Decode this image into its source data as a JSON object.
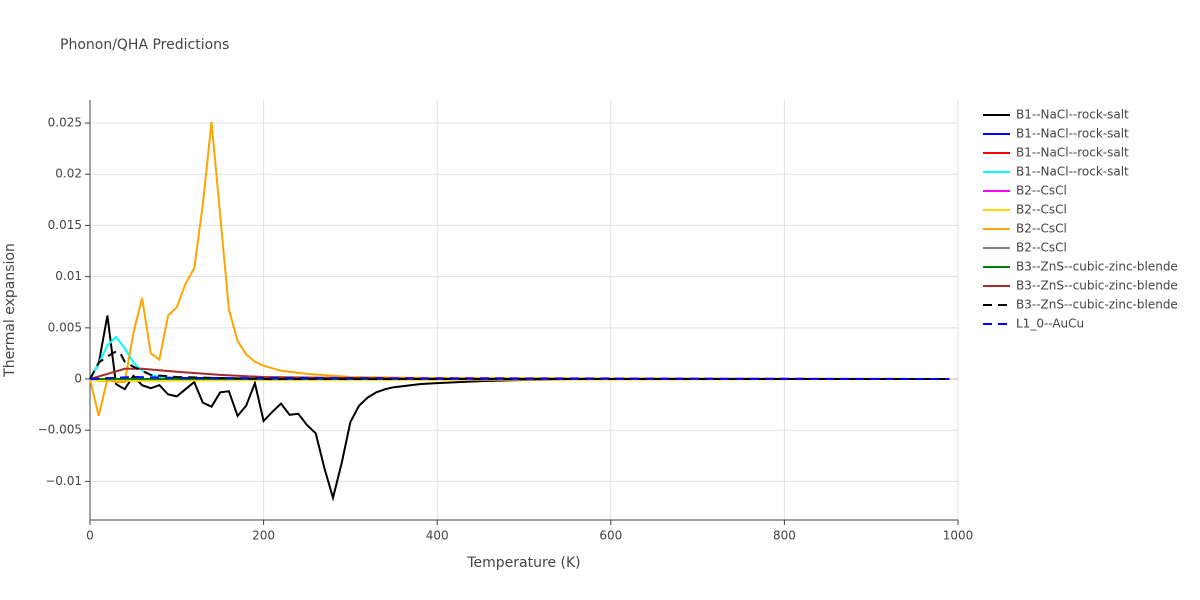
{
  "chart_data": {
    "type": "line",
    "title": "Phonon/QHA Predictions",
    "x_label": "Temperature (K)",
    "y_label": "Thermal expansion",
    "xlim": [
      0,
      1000
    ],
    "xticks": [
      0,
      200,
      400,
      600,
      800,
      1000
    ],
    "ylim": [
      -0.01377,
      0.02725
    ],
    "yticks": [
      {
        "value": -0.01,
        "label": "−0.01"
      },
      {
        "value": -0.005,
        "label": "−0.005"
      },
      0,
      0.005,
      0.01,
      0.015,
      0.02,
      0.025
    ],
    "grid": true,
    "legend": "right",
    "series": [
      {
        "name": "B1--NaCl--rock-salt",
        "color": "#000000",
        "dash": "solid",
        "x": [
          0,
          10,
          20,
          30,
          40,
          50,
          60,
          70,
          80,
          90,
          100,
          110,
          120,
          130,
          140,
          150,
          160,
          170,
          180,
          190,
          200,
          210,
          220,
          230,
          240,
          250,
          260,
          270,
          280,
          290,
          300,
          310,
          320,
          330,
          340,
          350,
          360,
          380,
          400,
          450,
          500,
          600,
          990
        ],
        "values": [
          0,
          0.0015,
          0.0062,
          -0.0005,
          -0.001,
          0.0003,
          -0.0006,
          -0.0009,
          -0.0006,
          -0.0015,
          -0.0017,
          -0.001,
          -0.0003,
          -0.0023,
          -0.0027,
          -0.0013,
          -0.0012,
          -0.0036,
          -0.0026,
          -0.0004,
          -0.0041,
          -0.0032,
          -0.0024,
          -0.0035,
          -0.0034,
          -0.0045,
          -0.0053,
          -0.0087,
          -0.0116,
          -0.0082,
          -0.0042,
          -0.0026,
          -0.0018,
          -0.0013,
          -0.001,
          -0.0008,
          -0.0007,
          -0.0005,
          -0.0004,
          -0.0002,
          -0.0001,
          0,
          0
        ]
      },
      {
        "name": "B1--NaCl--rock-salt",
        "color": "#0000ff",
        "dash": "solid",
        "x": [
          0,
          990
        ],
        "values": [
          0,
          0
        ]
      },
      {
        "name": "B1--NaCl--rock-salt",
        "color": "#ff0000",
        "dash": "solid",
        "x": [
          0,
          990
        ],
        "values": [
          0,
          0
        ]
      },
      {
        "name": "B1--NaCl--rock-salt",
        "color": "#00ffff",
        "dash": "solid",
        "x": [
          0,
          10,
          20,
          30,
          40,
          50,
          60,
          70,
          80,
          100,
          200,
          990
        ],
        "values": [
          0,
          0.0015,
          0.0033,
          0.0041,
          0.003,
          0.0016,
          0.0008,
          0.0004,
          0.0002,
          0.0001,
          0,
          0
        ]
      },
      {
        "name": "B2--CsCl",
        "color": "#ff00ff",
        "dash": "solid",
        "x": [
          0,
          990
        ],
        "values": [
          0,
          0
        ]
      },
      {
        "name": "B2--CsCl",
        "color": "#ffd700",
        "dash": "solid",
        "x": [
          0,
          10,
          200,
          990
        ],
        "values": [
          0,
          -0.0002,
          -0.0001,
          0
        ]
      },
      {
        "name": "B2--CsCl",
        "color": "#ffa500",
        "dash": "solid",
        "x": [
          0,
          10,
          20,
          30,
          40,
          50,
          60,
          70,
          80,
          90,
          100,
          110,
          120,
          130,
          140,
          150,
          160,
          170,
          180,
          190,
          200,
          220,
          250,
          300,
          400,
          990
        ],
        "values": [
          0,
          -0.0036,
          0,
          -0.0003,
          -0.0003,
          0.0045,
          0.0079,
          0.0025,
          0.0019,
          0.0062,
          0.007,
          0.0093,
          0.0108,
          0.017,
          0.0251,
          0.016,
          0.0068,
          0.0037,
          0.0024,
          0.0017,
          0.0013,
          0.0008,
          0.0005,
          0.0002,
          0.0001,
          0
        ]
      },
      {
        "name": "B2--CsCl",
        "color": "#808080",
        "dash": "solid",
        "x": [
          0,
          990
        ],
        "values": [
          0,
          0
        ]
      },
      {
        "name": "B3--ZnS--cubic-zinc-blende",
        "color": "#008000",
        "dash": "solid",
        "x": [
          0,
          990
        ],
        "values": [
          0,
          0
        ]
      },
      {
        "name": "B3--ZnS--cubic-zinc-blende",
        "color": "#a52a2a",
        "dash": "solid",
        "x": [
          0,
          20,
          40,
          60,
          100,
          150,
          200,
          300,
          400,
          990
        ],
        "values": [
          0,
          0.0005,
          0.001,
          0.001,
          0.0007,
          0.0004,
          0.0002,
          0.0001,
          0,
          0
        ]
      },
      {
        "name": "B3--ZnS--cubic-zinc-blende",
        "color": "#000000",
        "dash": "dash",
        "x": [
          0,
          10,
          20,
          30,
          35,
          40,
          50,
          60,
          70,
          100,
          200,
          990
        ],
        "values": [
          0,
          0.0016,
          0.0022,
          0.0027,
          0.0025,
          0.0017,
          0.0012,
          0.0008,
          0.0004,
          0.0002,
          0,
          0
        ]
      },
      {
        "name": "L1_0--AuCu",
        "color": "#0000ff",
        "dash": "dash",
        "x": [
          0,
          50,
          100,
          990
        ],
        "values": [
          0,
          0.0002,
          0.0001,
          0
        ]
      }
    ]
  }
}
